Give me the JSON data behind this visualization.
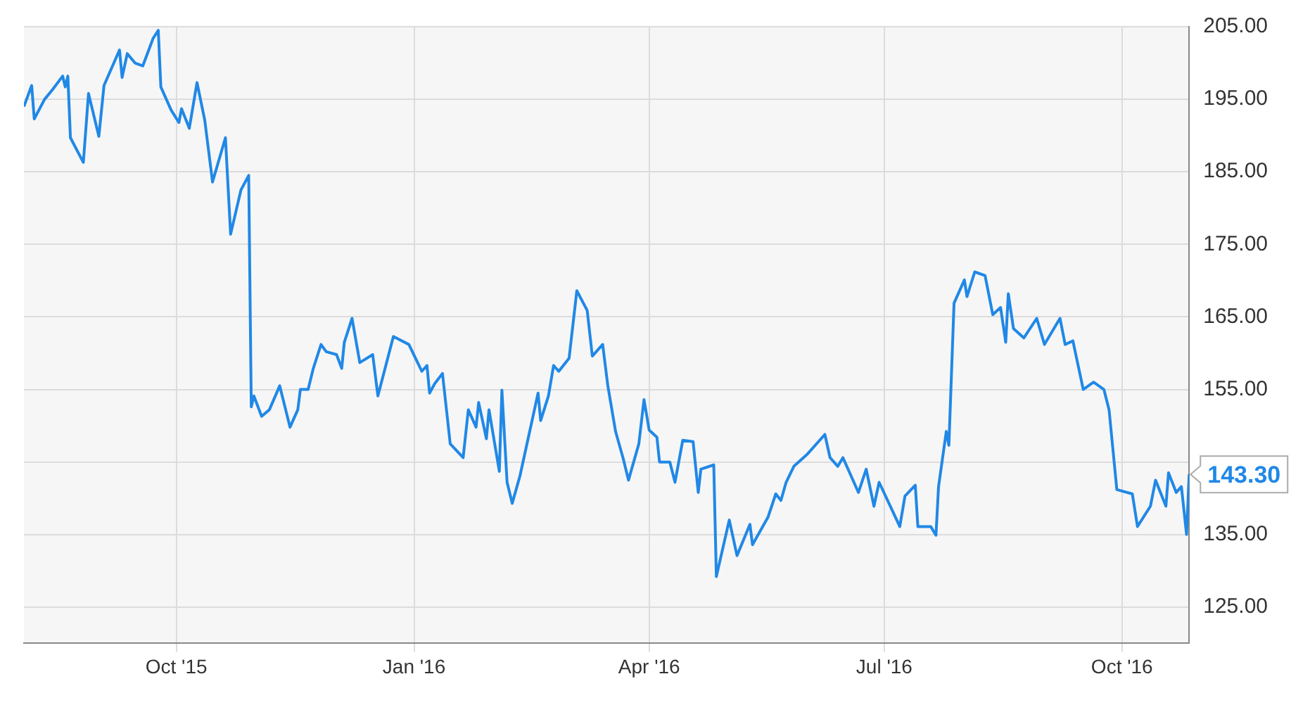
{
  "chart_data": {
    "type": "line",
    "x": [
      "2015-08-03",
      "2015-08-06",
      "2015-08-07",
      "2015-08-11",
      "2015-08-14",
      "2015-08-18",
      "2015-08-19",
      "2015-08-20",
      "2015-08-21",
      "2015-08-26",
      "2015-08-28",
      "2015-09-01",
      "2015-09-03",
      "2015-09-09",
      "2015-09-10",
      "2015-09-12",
      "2015-09-15",
      "2015-09-18",
      "2015-09-22",
      "2015-09-24",
      "2015-09-25",
      "2015-09-29",
      "2015-10-02",
      "2015-10-03",
      "2015-10-06",
      "2015-10-09",
      "2015-10-12",
      "2015-10-15",
      "2015-10-20",
      "2015-10-22",
      "2015-10-26",
      "2015-10-29",
      "2015-10-30",
      "2015-10-31",
      "2015-11-03",
      "2015-11-06",
      "2015-11-10",
      "2015-11-14",
      "2015-11-17",
      "2015-11-18",
      "2015-11-21",
      "2015-11-23",
      "2015-11-26",
      "2015-11-28",
      "2015-12-02",
      "2015-12-04",
      "2015-12-05",
      "2015-12-08",
      "2015-12-11",
      "2015-12-16",
      "2015-12-18",
      "2015-12-24",
      "2015-12-30",
      "2016-01-04",
      "2016-01-06",
      "2016-01-07",
      "2016-01-09",
      "2016-01-12",
      "2016-01-15",
      "2016-01-20",
      "2016-01-22",
      "2016-01-25",
      "2016-01-26",
      "2016-01-29",
      "2016-01-30",
      "2016-02-03",
      "2016-02-04",
      "2016-02-06",
      "2016-02-08",
      "2016-02-11",
      "2016-02-18",
      "2016-02-19",
      "2016-02-22",
      "2016-02-24",
      "2016-02-26",
      "2016-03-01",
      "2016-03-04",
      "2016-03-08",
      "2016-03-10",
      "2016-03-14",
      "2016-03-16",
      "2016-03-19",
      "2016-03-22",
      "2016-03-24",
      "2016-03-28",
      "2016-03-30",
      "2016-04-01",
      "2016-04-04",
      "2016-04-05",
      "2016-04-09",
      "2016-04-11",
      "2016-04-14",
      "2016-04-18",
      "2016-04-20",
      "2016-04-21",
      "2016-04-26",
      "2016-04-27",
      "2016-05-02",
      "2016-05-05",
      "2016-05-10",
      "2016-05-11",
      "2016-05-17",
      "2016-05-20",
      "2016-05-22",
      "2016-05-24",
      "2016-05-27",
      "2016-06-01",
      "2016-06-08",
      "2016-06-10",
      "2016-06-13",
      "2016-06-15",
      "2016-06-21",
      "2016-06-24",
      "2016-06-27",
      "2016-06-29",
      "2016-07-07",
      "2016-07-09",
      "2016-07-13",
      "2016-07-14",
      "2016-07-19",
      "2016-07-21",
      "2016-07-22",
      "2016-07-25",
      "2016-07-26",
      "2016-07-28",
      "2016-08-01",
      "2016-08-02",
      "2016-08-05",
      "2016-08-09",
      "2016-08-12",
      "2016-08-15",
      "2016-08-17",
      "2016-08-18",
      "2016-08-20",
      "2016-08-24",
      "2016-08-29",
      "2016-09-01",
      "2016-09-07",
      "2016-09-09",
      "2016-09-12",
      "2016-09-16",
      "2016-09-20",
      "2016-09-24",
      "2016-09-26",
      "2016-09-29",
      "2016-10-05",
      "2016-10-07",
      "2016-10-12",
      "2016-10-14",
      "2016-10-18",
      "2016-10-19",
      "2016-10-22",
      "2016-10-24",
      "2016-10-26",
      "2016-10-27"
    ],
    "series": [
      {
        "color": "#2088e6",
        "values": [
          194.0,
          196.9,
          192.3,
          195.0,
          196.3,
          198.2,
          196.7,
          198.2,
          189.7,
          186.3,
          195.8,
          189.9,
          196.9,
          201.8,
          198.0,
          201.3,
          200.0,
          199.6,
          203.4,
          204.5,
          196.7,
          193.5,
          191.8,
          193.7,
          191.0,
          197.3,
          192.1,
          183.6,
          189.7,
          176.4,
          182.5,
          184.5,
          152.6,
          154.1,
          151.3,
          152.2,
          155.5,
          149.8,
          152.2,
          155.0,
          155.0,
          157.9,
          161.2,
          160.2,
          159.8,
          157.9,
          161.5,
          164.8,
          158.7,
          159.8,
          154.1,
          162.3,
          161.2,
          157.5,
          158.3,
          154.5,
          155.8,
          157.2,
          147.5,
          145.6,
          152.2,
          149.8,
          153.2,
          148.2,
          152.2,
          143.7,
          154.9,
          142.2,
          139.3,
          143.1,
          154.5,
          150.7,
          154.1,
          158.3,
          157.5,
          159.3,
          168.6,
          165.9,
          159.6,
          161.2,
          155.5,
          149.2,
          145.4,
          142.5,
          147.5,
          153.6,
          149.4,
          148.4,
          145.0,
          145.0,
          142.2,
          148.0,
          147.8,
          140.8,
          144.0,
          144.6,
          129.2,
          137.0,
          132.1,
          136.4,
          133.6,
          137.4,
          140.6,
          139.7,
          142.2,
          144.4,
          146.0,
          148.8,
          145.6,
          144.4,
          145.6,
          140.8,
          144.0,
          138.9,
          142.2,
          136.1,
          140.3,
          141.8,
          136.1,
          136.1,
          134.9,
          141.6,
          149.2,
          147.3,
          166.9,
          170.1,
          167.8,
          171.2,
          170.7,
          165.3,
          166.3,
          161.5,
          168.2,
          163.4,
          162.1,
          164.8,
          161.2,
          164.8,
          161.2,
          161.7,
          155.0,
          156.0,
          155.0,
          152.2,
          141.2,
          140.6,
          136.1,
          138.9,
          142.5,
          138.9,
          143.5,
          140.8,
          141.6,
          135.0,
          143.3
        ]
      }
    ],
    "xlim": [
      "2015-08-03",
      "2016-10-27"
    ],
    "xticks": [
      {
        "value": "2015-10-01",
        "label": "Oct '15"
      },
      {
        "value": "2016-01-01",
        "label": "Jan '16"
      },
      {
        "value": "2016-04-01",
        "label": "Apr '16"
      },
      {
        "value": "2016-07-01",
        "label": "Jul '16"
      },
      {
        "value": "2016-10-01",
        "label": "Oct '16"
      }
    ],
    "ylim": [
      120,
      205
    ],
    "yticks": [
      {
        "value": 125,
        "label": "125.00"
      },
      {
        "value": 135,
        "label": "135.00"
      },
      {
        "value": 145,
        "label": null
      },
      {
        "value": 155,
        "label": "155.00"
      },
      {
        "value": 165,
        "label": "165.00"
      },
      {
        "value": 175,
        "label": "175.00"
      },
      {
        "value": 185,
        "label": "185.00"
      },
      {
        "value": 195,
        "label": "195.00"
      },
      {
        "value": 205,
        "label": "205.00"
      }
    ],
    "annotations": [
      {
        "text": "143.30",
        "x": "2016-10-27",
        "y": 143.3
      }
    ],
    "grid": true,
    "legend": false,
    "marker": "none",
    "line_style": "solid"
  }
}
